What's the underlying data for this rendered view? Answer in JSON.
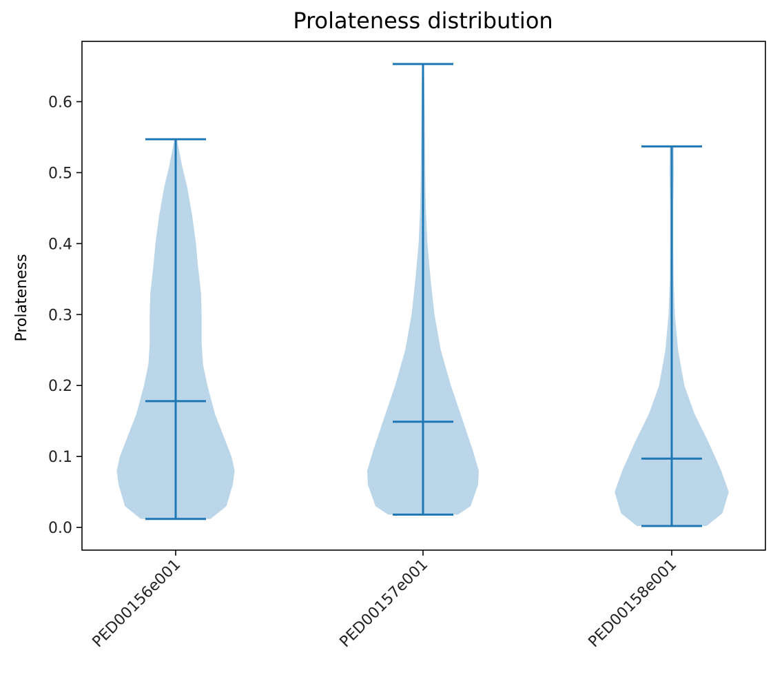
{
  "chart_data": {
    "type": "violin",
    "title": "Prolateness distribution",
    "xlabel": "",
    "ylabel": "Prolateness",
    "ylim": [
      -0.032,
      0.685
    ],
    "yticks": [
      "0.0",
      "0.1",
      "0.2",
      "0.3",
      "0.4",
      "0.5",
      "0.6"
    ],
    "ytick_values": [
      0.0,
      0.1,
      0.2,
      0.3,
      0.4,
      0.5,
      0.6
    ],
    "categories": [
      "PED00156e001",
      "PED00157e001",
      "PED00158e001"
    ],
    "grid": false,
    "colors": {
      "stat_line": "#1f77b4",
      "body_fill": "#1f77b4",
      "axis": "#000000"
    },
    "series": [
      {
        "category": "PED00156e001",
        "min": 0.012,
        "median": 0.178,
        "max": 0.547,
        "density_profile": [
          [
            0.012,
            0.55
          ],
          [
            0.03,
            0.8
          ],
          [
            0.06,
            0.9
          ],
          [
            0.08,
            0.93
          ],
          [
            0.1,
            0.88
          ],
          [
            0.13,
            0.75
          ],
          [
            0.16,
            0.62
          ],
          [
            0.2,
            0.5
          ],
          [
            0.23,
            0.43
          ],
          [
            0.26,
            0.41
          ],
          [
            0.3,
            0.41
          ],
          [
            0.33,
            0.4
          ],
          [
            0.37,
            0.35
          ],
          [
            0.4,
            0.32
          ],
          [
            0.44,
            0.26
          ],
          [
            0.48,
            0.18
          ],
          [
            0.51,
            0.1
          ],
          [
            0.547,
            0.02
          ]
        ]
      },
      {
        "category": "PED00157e001",
        "min": 0.018,
        "median": 0.149,
        "max": 0.653,
        "density_profile": [
          [
            0.018,
            0.55
          ],
          [
            0.03,
            0.75
          ],
          [
            0.06,
            0.87
          ],
          [
            0.08,
            0.88
          ],
          [
            0.11,
            0.78
          ],
          [
            0.15,
            0.63
          ],
          [
            0.2,
            0.44
          ],
          [
            0.25,
            0.28
          ],
          [
            0.3,
            0.18
          ],
          [
            0.35,
            0.12
          ],
          [
            0.4,
            0.07
          ],
          [
            0.45,
            0.045
          ],
          [
            0.5,
            0.035
          ],
          [
            0.55,
            0.03
          ],
          [
            0.6,
            0.025
          ],
          [
            0.653,
            0.015
          ]
        ]
      },
      {
        "category": "PED00158e001",
        "min": 0.002,
        "median": 0.097,
        "max": 0.537,
        "density_profile": [
          [
            0.002,
            0.55
          ],
          [
            0.02,
            0.8
          ],
          [
            0.05,
            0.9
          ],
          [
            0.08,
            0.78
          ],
          [
            0.12,
            0.58
          ],
          [
            0.16,
            0.36
          ],
          [
            0.2,
            0.2
          ],
          [
            0.25,
            0.1
          ],
          [
            0.3,
            0.05
          ],
          [
            0.35,
            0.03
          ],
          [
            0.4,
            0.025
          ],
          [
            0.45,
            0.025
          ],
          [
            0.5,
            0.035
          ],
          [
            0.537,
            0.03
          ]
        ]
      }
    ]
  }
}
